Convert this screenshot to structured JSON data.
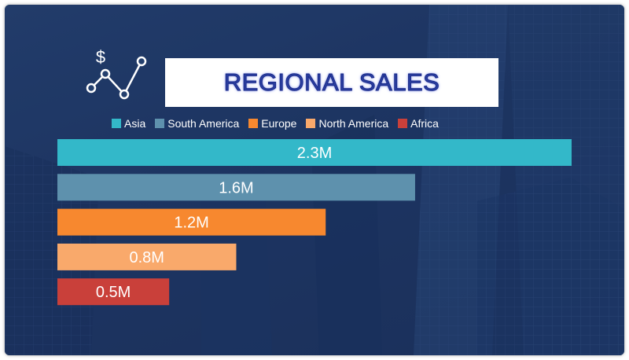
{
  "chart_data": {
    "type": "bar",
    "orientation": "horizontal",
    "title": "REGIONAL SALES",
    "categories": [
      "Asia",
      "South America",
      "Europe",
      "North America",
      "Africa"
    ],
    "values": [
      2.3,
      1.6,
      1.2,
      0.8,
      0.5
    ],
    "value_labels": [
      "2.3M",
      "1.6M",
      "1.2M",
      "0.8M",
      "0.5M"
    ],
    "colors": [
      "#33b8c9",
      "#5e91ad",
      "#f7882f",
      "#f9a96b",
      "#c9403a"
    ],
    "legend": "top",
    "grid": false,
    "xlim": [
      0,
      2.3
    ]
  },
  "header": {
    "icon": "dollar-chart-icon"
  }
}
